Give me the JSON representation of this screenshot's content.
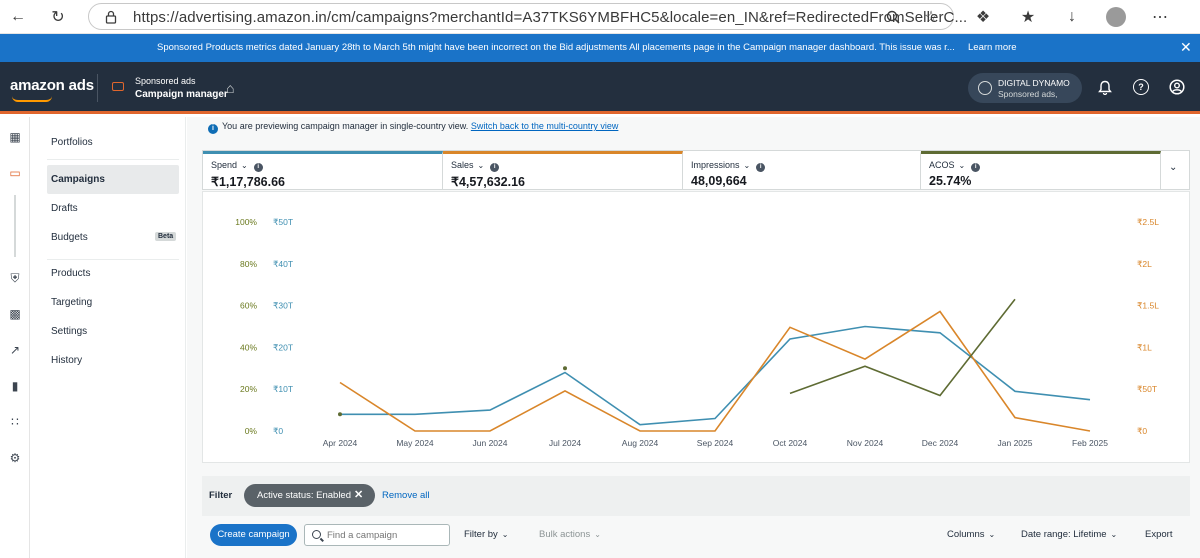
{
  "browser": {
    "url": "https://advertising.amazon.in/cm/campaigns?merchantId=A37TKS6YMBFHC5&locale=en_IN&ref=RedirectedFromSellerC..."
  },
  "banner": {
    "text": "Sponsored Products metrics dated January 28th to March 5th might have been incorrect on the Bid adjustments All placements page in the Campaign manager dashboard. This issue was r...",
    "link": "Learn more"
  },
  "header": {
    "logo": "amazon ads",
    "product": "Sponsored ads",
    "title": "Campaign manager",
    "account_name": "DIGITAL DYNAMO",
    "account_sub": "Sponsored ads,"
  },
  "nav": {
    "items": [
      "Portfolios",
      "Campaigns",
      "Drafts",
      "Budgets",
      "Products",
      "Targeting",
      "Settings",
      "History"
    ],
    "beta": "Beta"
  },
  "preview": {
    "text": "You are previewing campaign manager in single-country view.",
    "link": "Switch back to the multi-country view"
  },
  "metrics": [
    {
      "label": "Spend",
      "value": "₹1,17,786.66",
      "color": "#3f8fb1"
    },
    {
      "label": "Sales",
      "value": "₹4,57,632.16",
      "color": "#d9862a"
    },
    {
      "label": "Impressions",
      "value": "48,09,664",
      "color": "#ffffff"
    },
    {
      "label": "ACOS",
      "value": "25.74%",
      "color": "#5e6b33"
    }
  ],
  "chart_data": {
    "type": "line",
    "categories": [
      "Apr 2024",
      "May 2024",
      "Jun 2024",
      "Jul 2024",
      "Aug 2024",
      "Sep 2024",
      "Oct 2024",
      "Nov 2024",
      "Dec 2024",
      "Jan 2025",
      "Feb 2025"
    ],
    "left_axis_pct": [
      "100%",
      "80%",
      "60%",
      "40%",
      "20%",
      "0%"
    ],
    "left_axis_spend": [
      "₹50T",
      "₹40T",
      "₹30T",
      "₹20T",
      "₹10T",
      "₹0"
    ],
    "right_axis_sales": [
      "₹2.5L",
      "₹2L",
      "₹1.5L",
      "₹1L",
      "₹50T",
      "₹0"
    ],
    "series": [
      {
        "name": "Spend",
        "axis": "spend_T",
        "ymax": 50,
        "color": "#3f8fb1",
        "values": [
          4,
          4,
          5,
          14,
          1.5,
          3,
          22,
          25,
          23.5,
          9.5,
          7.5
        ]
      },
      {
        "name": "Sales",
        "axis": "sales_L",
        "ymax": 2.5,
        "color": "#d9862a",
        "values": [
          0.58,
          0,
          0,
          0.48,
          0,
          0,
          1.24,
          0.86,
          1.43,
          0.16,
          0
        ]
      },
      {
        "name": "ACOS",
        "axis": "pct",
        "ymax": 100,
        "color": "#5e6b33",
        "values": [
          8,
          null,
          null,
          30,
          null,
          null,
          18,
          31,
          17,
          63,
          null
        ]
      }
    ]
  },
  "filter": {
    "label": "Filter",
    "active": "Active status: Enabled",
    "remove_all": "Remove all"
  },
  "toolbar": {
    "create": "Create campaign",
    "search_placeholder": "Find a campaign",
    "filter_by": "Filter by",
    "bulk": "Bulk actions",
    "columns": "Columns",
    "date_range": "Date range: Lifetime",
    "export": "Export"
  }
}
